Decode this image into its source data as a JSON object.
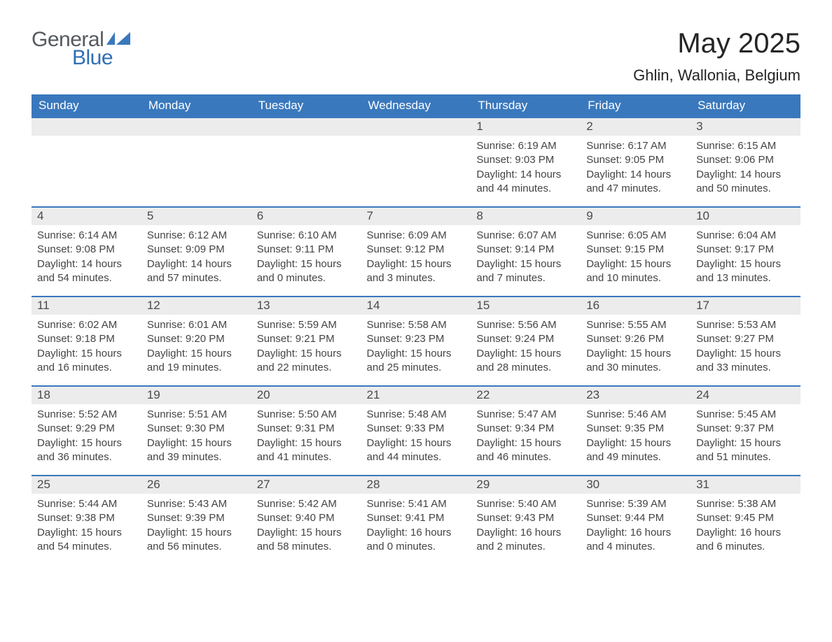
{
  "logo": {
    "text_general": "General",
    "text_blue": "Blue",
    "flag_color": "#3a78bd"
  },
  "title": "May 2025",
  "location": "Ghlin, Wallonia, Belgium",
  "colors": {
    "header_bg": "#3a78bd",
    "header_text": "#ffffff",
    "daynum_bg": "#ececec",
    "daynum_border": "#3a78bd",
    "body_text": "#444444",
    "page_bg": "#ffffff"
  },
  "weekdays": [
    "Sunday",
    "Monday",
    "Tuesday",
    "Wednesday",
    "Thursday",
    "Friday",
    "Saturday"
  ],
  "weeks": [
    [
      null,
      null,
      null,
      null,
      {
        "day": "1",
        "sunrise": "Sunrise: 6:19 AM",
        "sunset": "Sunset: 9:03 PM",
        "daylight1": "Daylight: 14 hours",
        "daylight2": "and 44 minutes."
      },
      {
        "day": "2",
        "sunrise": "Sunrise: 6:17 AM",
        "sunset": "Sunset: 9:05 PM",
        "daylight1": "Daylight: 14 hours",
        "daylight2": "and 47 minutes."
      },
      {
        "day": "3",
        "sunrise": "Sunrise: 6:15 AM",
        "sunset": "Sunset: 9:06 PM",
        "daylight1": "Daylight: 14 hours",
        "daylight2": "and 50 minutes."
      }
    ],
    [
      {
        "day": "4",
        "sunrise": "Sunrise: 6:14 AM",
        "sunset": "Sunset: 9:08 PM",
        "daylight1": "Daylight: 14 hours",
        "daylight2": "and 54 minutes."
      },
      {
        "day": "5",
        "sunrise": "Sunrise: 6:12 AM",
        "sunset": "Sunset: 9:09 PM",
        "daylight1": "Daylight: 14 hours",
        "daylight2": "and 57 minutes."
      },
      {
        "day": "6",
        "sunrise": "Sunrise: 6:10 AM",
        "sunset": "Sunset: 9:11 PM",
        "daylight1": "Daylight: 15 hours",
        "daylight2": "and 0 minutes."
      },
      {
        "day": "7",
        "sunrise": "Sunrise: 6:09 AM",
        "sunset": "Sunset: 9:12 PM",
        "daylight1": "Daylight: 15 hours",
        "daylight2": "and 3 minutes."
      },
      {
        "day": "8",
        "sunrise": "Sunrise: 6:07 AM",
        "sunset": "Sunset: 9:14 PM",
        "daylight1": "Daylight: 15 hours",
        "daylight2": "and 7 minutes."
      },
      {
        "day": "9",
        "sunrise": "Sunrise: 6:05 AM",
        "sunset": "Sunset: 9:15 PM",
        "daylight1": "Daylight: 15 hours",
        "daylight2": "and 10 minutes."
      },
      {
        "day": "10",
        "sunrise": "Sunrise: 6:04 AM",
        "sunset": "Sunset: 9:17 PM",
        "daylight1": "Daylight: 15 hours",
        "daylight2": "and 13 minutes."
      }
    ],
    [
      {
        "day": "11",
        "sunrise": "Sunrise: 6:02 AM",
        "sunset": "Sunset: 9:18 PM",
        "daylight1": "Daylight: 15 hours",
        "daylight2": "and 16 minutes."
      },
      {
        "day": "12",
        "sunrise": "Sunrise: 6:01 AM",
        "sunset": "Sunset: 9:20 PM",
        "daylight1": "Daylight: 15 hours",
        "daylight2": "and 19 minutes."
      },
      {
        "day": "13",
        "sunrise": "Sunrise: 5:59 AM",
        "sunset": "Sunset: 9:21 PM",
        "daylight1": "Daylight: 15 hours",
        "daylight2": "and 22 minutes."
      },
      {
        "day": "14",
        "sunrise": "Sunrise: 5:58 AM",
        "sunset": "Sunset: 9:23 PM",
        "daylight1": "Daylight: 15 hours",
        "daylight2": "and 25 minutes."
      },
      {
        "day": "15",
        "sunrise": "Sunrise: 5:56 AM",
        "sunset": "Sunset: 9:24 PM",
        "daylight1": "Daylight: 15 hours",
        "daylight2": "and 28 minutes."
      },
      {
        "day": "16",
        "sunrise": "Sunrise: 5:55 AM",
        "sunset": "Sunset: 9:26 PM",
        "daylight1": "Daylight: 15 hours",
        "daylight2": "and 30 minutes."
      },
      {
        "day": "17",
        "sunrise": "Sunrise: 5:53 AM",
        "sunset": "Sunset: 9:27 PM",
        "daylight1": "Daylight: 15 hours",
        "daylight2": "and 33 minutes."
      }
    ],
    [
      {
        "day": "18",
        "sunrise": "Sunrise: 5:52 AM",
        "sunset": "Sunset: 9:29 PM",
        "daylight1": "Daylight: 15 hours",
        "daylight2": "and 36 minutes."
      },
      {
        "day": "19",
        "sunrise": "Sunrise: 5:51 AM",
        "sunset": "Sunset: 9:30 PM",
        "daylight1": "Daylight: 15 hours",
        "daylight2": "and 39 minutes."
      },
      {
        "day": "20",
        "sunrise": "Sunrise: 5:50 AM",
        "sunset": "Sunset: 9:31 PM",
        "daylight1": "Daylight: 15 hours",
        "daylight2": "and 41 minutes."
      },
      {
        "day": "21",
        "sunrise": "Sunrise: 5:48 AM",
        "sunset": "Sunset: 9:33 PM",
        "daylight1": "Daylight: 15 hours",
        "daylight2": "and 44 minutes."
      },
      {
        "day": "22",
        "sunrise": "Sunrise: 5:47 AM",
        "sunset": "Sunset: 9:34 PM",
        "daylight1": "Daylight: 15 hours",
        "daylight2": "and 46 minutes."
      },
      {
        "day": "23",
        "sunrise": "Sunrise: 5:46 AM",
        "sunset": "Sunset: 9:35 PM",
        "daylight1": "Daylight: 15 hours",
        "daylight2": "and 49 minutes."
      },
      {
        "day": "24",
        "sunrise": "Sunrise: 5:45 AM",
        "sunset": "Sunset: 9:37 PM",
        "daylight1": "Daylight: 15 hours",
        "daylight2": "and 51 minutes."
      }
    ],
    [
      {
        "day": "25",
        "sunrise": "Sunrise: 5:44 AM",
        "sunset": "Sunset: 9:38 PM",
        "daylight1": "Daylight: 15 hours",
        "daylight2": "and 54 minutes."
      },
      {
        "day": "26",
        "sunrise": "Sunrise: 5:43 AM",
        "sunset": "Sunset: 9:39 PM",
        "daylight1": "Daylight: 15 hours",
        "daylight2": "and 56 minutes."
      },
      {
        "day": "27",
        "sunrise": "Sunrise: 5:42 AM",
        "sunset": "Sunset: 9:40 PM",
        "daylight1": "Daylight: 15 hours",
        "daylight2": "and 58 minutes."
      },
      {
        "day": "28",
        "sunrise": "Sunrise: 5:41 AM",
        "sunset": "Sunset: 9:41 PM",
        "daylight1": "Daylight: 16 hours",
        "daylight2": "and 0 minutes."
      },
      {
        "day": "29",
        "sunrise": "Sunrise: 5:40 AM",
        "sunset": "Sunset: 9:43 PM",
        "daylight1": "Daylight: 16 hours",
        "daylight2": "and 2 minutes."
      },
      {
        "day": "30",
        "sunrise": "Sunrise: 5:39 AM",
        "sunset": "Sunset: 9:44 PM",
        "daylight1": "Daylight: 16 hours",
        "daylight2": "and 4 minutes."
      },
      {
        "day": "31",
        "sunrise": "Sunrise: 5:38 AM",
        "sunset": "Sunset: 9:45 PM",
        "daylight1": "Daylight: 16 hours",
        "daylight2": "and 6 minutes."
      }
    ]
  ]
}
